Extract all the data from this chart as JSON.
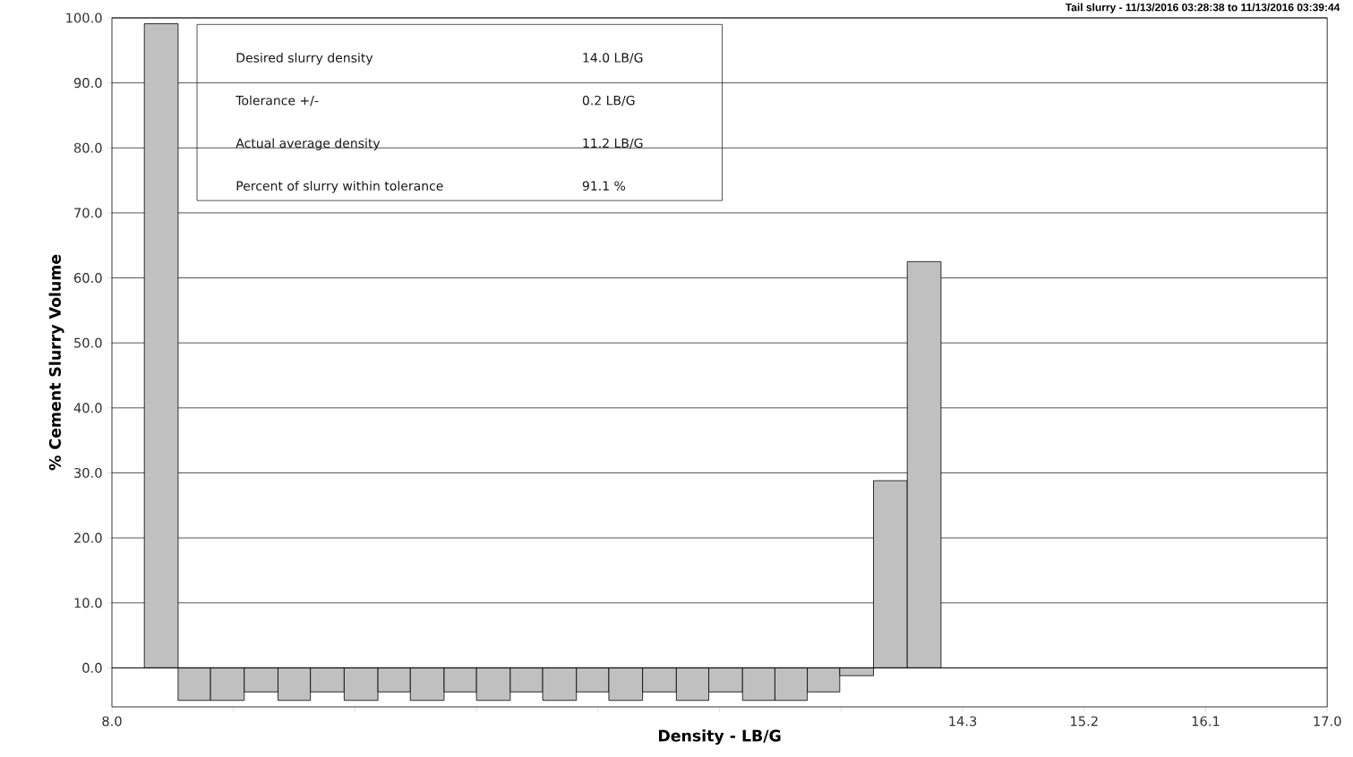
{
  "chart_data": {
    "type": "histogram",
    "title": "Tail slurry - 11/13/2016 03:28:38 to 11/13/2016 03:39:44",
    "xlabel": "Density - LB/G",
    "ylabel": "% Cement Slurry Volume",
    "bins": [
      8.24,
      8.49,
      8.73,
      8.98,
      9.23,
      9.47,
      9.72,
      9.97,
      10.21,
      10.46,
      10.7,
      10.95,
      11.19,
      11.44,
      11.68,
      11.93,
      12.18,
      12.42,
      12.67,
      12.91,
      13.15,
      13.39,
      13.64,
      13.89,
      14.14
    ],
    "values": [
      99.1,
      -5.0,
      -5.0,
      -3.7,
      -5.0,
      -3.7,
      -5.0,
      -3.7,
      -5.0,
      -3.7,
      -5.0,
      -3.7,
      -5.0,
      -3.7,
      -5.0,
      -3.7,
      -5.0,
      -3.7,
      -5.0,
      -5.0,
      -3.7,
      -1.2,
      28.8,
      62.5
    ],
    "color": "#c0c0c0",
    "xlim": [
      8.0,
      17.0
    ],
    "xticks": [
      {
        "value": 8.0,
        "label": "8.0"
      },
      {
        "value": 8.9,
        "label": null
      },
      {
        "value": 9.8,
        "label": null
      },
      {
        "value": 10.7,
        "label": null
      },
      {
        "value": 11.6,
        "label": null
      },
      {
        "value": 12.5,
        "label": null
      },
      {
        "value": 13.4,
        "label": null
      },
      {
        "value": 14.3,
        "label": "14.3"
      },
      {
        "value": 15.2,
        "label": "15.2"
      },
      {
        "value": 16.1,
        "label": "16.1"
      },
      {
        "value": 17.0,
        "label": "17.0"
      }
    ],
    "ylim": [
      -6.0,
      100.0
    ],
    "yticks": [
      {
        "value": 0,
        "label": "0.0"
      },
      {
        "value": 10,
        "label": "10.0"
      },
      {
        "value": 20,
        "label": "20.0"
      },
      {
        "value": 30,
        "label": "30.0"
      },
      {
        "value": 40,
        "label": "40.0"
      },
      {
        "value": 50,
        "label": "50.0"
      },
      {
        "value": 60,
        "label": "60.0"
      },
      {
        "value": 70,
        "label": "70.0"
      },
      {
        "value": 80,
        "label": "80.0"
      },
      {
        "value": 90,
        "label": "90.0"
      },
      {
        "value": 100,
        "label": "100.0"
      }
    ],
    "grid": "y",
    "annotations": [
      "Desired slurry density",
      "14.0 LB/G",
      "Tolerance +/-",
      "0.2 LB/G",
      "Actual average density",
      "11.2 LB/G",
      "Percent of slurry within tolerance",
      "91.1 %"
    ]
  }
}
